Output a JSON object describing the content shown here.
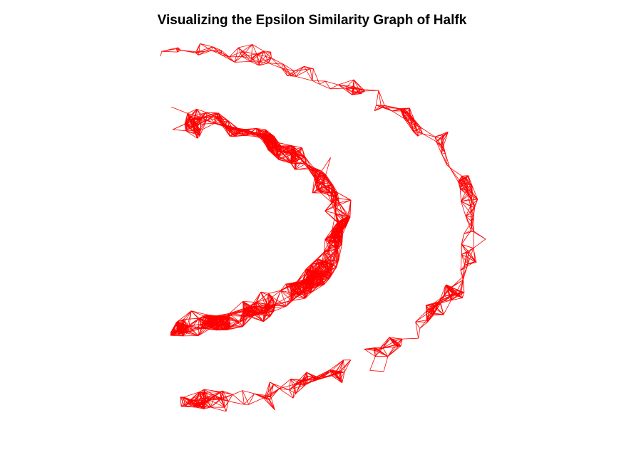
{
  "figure": {
    "title": "Visualizing the Epsilon Similarity Graph of Halfk",
    "edge_color": "#ff0000",
    "background": "#ffffff",
    "axes_visible": false,
    "graph_type": "epsilon-similarity-graph",
    "clusters": [
      "inner-arc",
      "outer-arc"
    ]
  }
}
